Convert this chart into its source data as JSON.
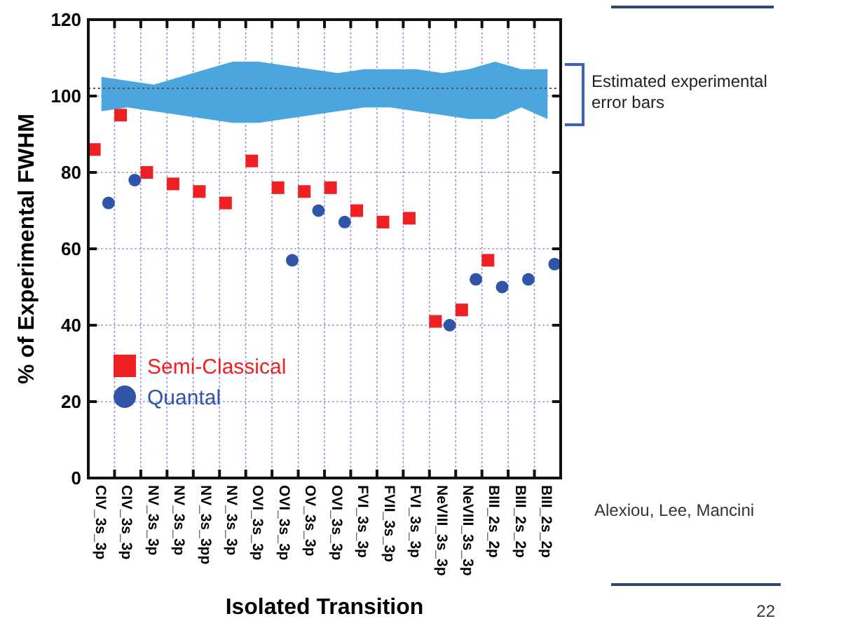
{
  "chart_data": {
    "type": "scatter",
    "xlabel": "Isolated Transition",
    "ylabel": "% of Experimental FWHM",
    "categories": [
      "CIV_3s_3p",
      "CIV_3s_3p",
      "NV_3s_3p",
      "NV_3s_3p",
      "NV_3s_3pp",
      "NV_3s_3p",
      "OVI_3s_3p",
      "OVI_3s_3p",
      "OV_3s_3p",
      "OVI_3s_3p",
      "FVI_3s_3p",
      "FVII_3s_3p",
      "FVI_3s_3p",
      "NeVIII_3s_3p",
      "NeVIII_3s_3p",
      "BIII_2s_2p",
      "BIII_2s_2p",
      "BIII_2s_2p"
    ],
    "series": [
      {
        "type": "line",
        "color": "#4aa6dc",
        "values": [
          null,
          null,
          null,
          null,
          null,
          null,
          null,
          null,
          null,
          null,
          null,
          null,
          null,
          null,
          null,
          null,
          null,
          null
        ],
        "lower": [
          96,
          97,
          96,
          95,
          94,
          93,
          93,
          94,
          95,
          96,
          97,
          97,
          96,
          95,
          94,
          94,
          97,
          94
        ],
        "upper": [
          105,
          104,
          103,
          105,
          107,
          109,
          109,
          108,
          107,
          106,
          107,
          107,
          107,
          106,
          107,
          109,
          107,
          107
        ]
      },
      {
        "name": "Semi-Classical",
        "color": "#ee2024",
        "marker": "square",
        "values": [
          86,
          95,
          80,
          77,
          75,
          72,
          83,
          76,
          75,
          76,
          70,
          67,
          68,
          41,
          44,
          57,
          null,
          null
        ]
      },
      {
        "name": "Quantal",
        "color": "#2f54a8",
        "marker": "circle",
        "values": [
          72,
          78,
          null,
          null,
          null,
          null,
          null,
          57,
          70,
          67,
          null,
          null,
          null,
          40,
          52,
          50,
          52,
          56
        ]
      }
    ],
    "ylim": [
      0,
      120
    ],
    "yticks": [
      0,
      20,
      40,
      60,
      80,
      100,
      120
    ],
    "grid": true,
    "legend": "bottom left",
    "ref_lines": [
      {
        "axis": "y",
        "value": 102,
        "color": "#555555",
        "line_style": "dotted"
      }
    ],
    "annotations": [
      "Estimated experimental error bars",
      "Alexiou, Lee, Mancini",
      "22"
    ]
  }
}
